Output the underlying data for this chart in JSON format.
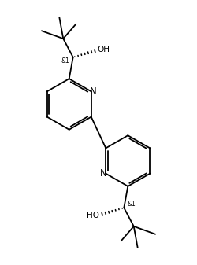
{
  "bg_color": "#ffffff",
  "line_color": "#000000",
  "line_width": 1.3,
  "font_size": 6.5,
  "fig_width": 2.5,
  "fig_height": 3.37,
  "dpi": 100,
  "xlim": [
    0,
    10
  ],
  "ylim": [
    0,
    13.5
  ]
}
